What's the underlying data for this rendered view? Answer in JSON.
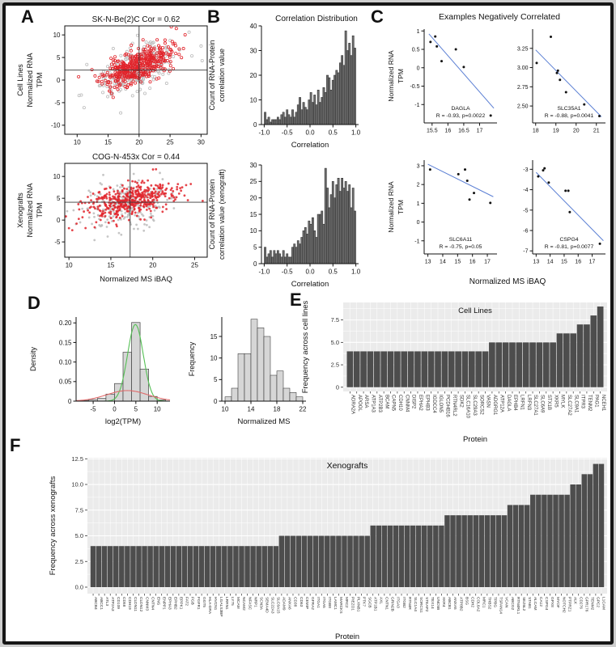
{
  "panels": {
    "a": "A",
    "b": "B",
    "c": "C",
    "d": "D",
    "e": "E",
    "f": "F"
  },
  "section_c": {
    "title": "Examples Negatively Correlated",
    "shared_xlabel": "Normalized MS iBAQ",
    "shared_ylabel_lines": [
      "Normalized RNA",
      "TPM"
    ]
  },
  "chart_data": {
    "a1": {
      "type": "scatter_gen",
      "title": "SK-N-Be(2)C Cor = 0.62",
      "ylabel_lines": [
        "Cell Lines",
        "Normalized RNA",
        "TPM"
      ],
      "xlabel": "",
      "xlim": [
        8,
        31
      ],
      "ylim": [
        -12,
        12
      ],
      "xticks": [
        "10",
        "15",
        "20",
        "25",
        "30"
      ],
      "xtick_vals": [
        10,
        15,
        20,
        25,
        30
      ],
      "yticks": [
        "10",
        "5",
        "0",
        "-5",
        "-10"
      ],
      "ytick_vals": [
        10,
        5,
        0,
        -5,
        -10
      ],
      "crosshair": {
        "x": 20,
        "y": 2.2
      },
      "filled": false,
      "red": {
        "n": 430,
        "mx": 19.6,
        "sx": 2.7,
        "my": 3.0,
        "sy": 2.2,
        "r": 0.62,
        "seed": 11
      },
      "gray": {
        "n": 260,
        "mx": 19.2,
        "sx": 3.1,
        "my": 2.2,
        "sy": 2.9,
        "r": 0.5,
        "seed": 77
      },
      "colors": {
        "red": "#e2242b",
        "gray": "#bcbcbc"
      }
    },
    "a2": {
      "type": "scatter_gen",
      "title": "COG-N-453x Cor = 0.44",
      "ylabel_lines": [
        "Xenografts",
        "Normalized RNA",
        "TPM"
      ],
      "xlabel": "Normalized MS iBAQ",
      "xlim": [
        9.5,
        26.5
      ],
      "ylim": [
        -8.5,
        13
      ],
      "xticks": [
        "10",
        "15",
        "20",
        "25"
      ],
      "xtick_vals": [
        10,
        15,
        20,
        25
      ],
      "yticks": [
        "10",
        "5",
        "0",
        "-5"
      ],
      "ytick_vals": [
        10,
        5,
        0,
        -5
      ],
      "crosshair": {
        "x": 17.3,
        "y": 4.1
      },
      "filled": true,
      "red": {
        "n": 430,
        "mx": 17.1,
        "sx": 2.6,
        "my": 4.3,
        "sy": 2.1,
        "r": 0.44,
        "seed": 23
      },
      "gray": {
        "n": 250,
        "mx": 16.8,
        "sx": 2.9,
        "my": 3.4,
        "sy": 2.8,
        "r": 0.3,
        "seed": 91
      },
      "colors": {
        "red": "#e2242b",
        "gray": "#bcbcbc"
      }
    },
    "b1": {
      "type": "hist",
      "title": "Correlation Distribution",
      "ylabel_lines": [
        "Count of RNA-Protein",
        "correlation value"
      ],
      "xlabel": "Correlation",
      "xlim": [
        -1.06,
        1.06
      ],
      "ylim": [
        0,
        40
      ],
      "xticks": [
        "-1.0",
        "-0.5",
        "0.0",
        "0.5",
        "1.0"
      ],
      "xtick_vals": [
        -1.0,
        -0.5,
        0.0,
        0.5,
        1.0
      ],
      "yticks": [
        "0",
        "10",
        "20",
        "30",
        "40"
      ],
      "ytick_vals": [
        0,
        10,
        20,
        30,
        40
      ],
      "bin_start": -1,
      "bin_width": 0.04,
      "fill": "#6e6e6e",
      "values": [
        5,
        2,
        3,
        1,
        2,
        2,
        2,
        3,
        2,
        4,
        5,
        3,
        6,
        4,
        3,
        6,
        3,
        5,
        8,
        11,
        6,
        9,
        7,
        6,
        10,
        13,
        9,
        12,
        8,
        14,
        9,
        11,
        15,
        13,
        20,
        19,
        14,
        18,
        20,
        22,
        21,
        25,
        28,
        24,
        38,
        30,
        33,
        28,
        36,
        31
      ]
    },
    "b2": {
      "type": "hist",
      "title": "",
      "ylabel_lines": [
        "Count of RNA-Protein",
        "correlation value (xenograft)"
      ],
      "xlabel": "Correlation",
      "xlim": [
        -1.06,
        1.06
      ],
      "ylim": [
        0,
        30
      ],
      "xticks": [
        "-1.0",
        "-0.5",
        "0.0",
        "0.5",
        "1.0"
      ],
      "xtick_vals": [
        -1.0,
        -0.5,
        0.0,
        0.5,
        1.0
      ],
      "yticks": [
        "0",
        "5",
        "10",
        "15",
        "20",
        "25",
        "30"
      ],
      "ytick_vals": [
        0,
        5,
        10,
        15,
        20,
        25,
        30
      ],
      "bin_start": -1,
      "bin_width": 0.04,
      "fill": "#6e6e6e",
      "values": [
        5,
        2,
        3,
        4,
        2,
        4,
        3,
        4,
        3,
        2,
        4,
        2,
        3,
        2,
        2,
        5,
        6,
        5,
        7,
        6,
        8,
        10,
        11,
        9,
        13,
        12,
        14,
        10,
        8,
        15,
        15,
        16,
        12,
        29,
        23,
        17,
        21,
        25,
        20,
        24,
        26,
        22,
        26,
        23,
        25,
        22,
        24,
        17,
        23,
        16
      ]
    },
    "c1": {
      "type": "scatter_line",
      "gene": "DAGLA",
      "stats": "R = -0.93, p=0.0022",
      "ylabel_lines": [
        "Normalized RNA",
        "TPM"
      ],
      "xlim": [
        15.25,
        17.55
      ],
      "ylim": [
        -1.5,
        1.05
      ],
      "xticks": [
        "15.5",
        "16",
        "16.5",
        "17"
      ],
      "xtick_vals": [
        15.5,
        16,
        16.5,
        17
      ],
      "yticks": [
        "1",
        "0.5",
        "0",
        "-0.5",
        "-1"
      ],
      "ytick_vals": [
        1,
        0.5,
        0,
        -0.5,
        -1
      ],
      "points": [
        [
          15.45,
          0.7
        ],
        [
          15.6,
          0.85
        ],
        [
          15.65,
          0.58
        ],
        [
          15.8,
          0.18
        ],
        [
          16.25,
          0.5
        ],
        [
          16.5,
          0.02
        ],
        [
          17.35,
          -1.3
        ]
      ],
      "line": [
        [
          15.4,
          0.92
        ],
        [
          17.45,
          -1.1
        ]
      ],
      "line_color": "#5b7fd4"
    },
    "c2": {
      "type": "scatter_line",
      "gene": "SLC35A1",
      "stats": "R = -0.88, p=0.0041",
      "ylabel_lines": [],
      "xlim": [
        17.85,
        21.45
      ],
      "ylim": [
        2.28,
        3.5
      ],
      "xticks": [
        "18",
        "19",
        "20",
        "21"
      ],
      "xtick_vals": [
        18,
        19,
        20,
        21
      ],
      "yticks": [
        "3.25",
        "3.00",
        "2.75",
        "2.50"
      ],
      "ytick_vals": [
        3.25,
        3.0,
        2.75,
        2.5
      ],
      "points": [
        [
          18.05,
          3.06
        ],
        [
          18.75,
          3.4
        ],
        [
          19.05,
          2.93
        ],
        [
          19.1,
          2.96
        ],
        [
          19.2,
          2.84
        ],
        [
          19.5,
          2.68
        ],
        [
          20.4,
          2.52
        ],
        [
          21.15,
          2.37
        ]
      ],
      "line": [
        [
          18.0,
          3.23
        ],
        [
          21.25,
          2.36
        ]
      ],
      "line_color": "#5b7fd4"
    },
    "c3": {
      "type": "scatter_line",
      "gene": "SLC6A11",
      "stats": "R = -0.75, p=0.05",
      "ylabel_lines": [
        "Normalized RNA",
        "TPM"
      ],
      "xlim": [
        12.75,
        17.65
      ],
      "ylim": [
        -1.7,
        3.3
      ],
      "xticks": [
        "13",
        "14",
        "15",
        "16",
        "17"
      ],
      "xtick_vals": [
        13,
        14,
        15,
        16,
        17
      ],
      "yticks": [
        "3",
        "2",
        "1",
        "0",
        "-1"
      ],
      "ytick_vals": [
        3,
        2,
        1,
        0,
        -1
      ],
      "points": [
        [
          13.15,
          2.8
        ],
        [
          15.05,
          2.55
        ],
        [
          15.5,
          2.8
        ],
        [
          15.65,
          2.2
        ],
        [
          15.8,
          1.2
        ],
        [
          16.1,
          1.55
        ],
        [
          17.2,
          1.02
        ]
      ],
      "line": [
        [
          13.0,
          3.08
        ],
        [
          17.4,
          1.35
        ]
      ],
      "line_color": "#5b7fd4"
    },
    "c4": {
      "type": "scatter_line",
      "gene": "CSPG4",
      "stats": "R = -0.81, p=0.0077",
      "ylabel_lines": [],
      "xlim": [
        12.75,
        17.95
      ],
      "ylim": [
        -7.15,
        -2.55
      ],
      "xticks": [
        "13",
        "14",
        "15",
        "16",
        "17"
      ],
      "xtick_vals": [
        13,
        14,
        15,
        16,
        17
      ],
      "yticks": [
        "-3",
        "-4",
        "-5",
        "-6",
        "-7"
      ],
      "ytick_vals": [
        -3,
        -4,
        -5,
        -6,
        -7
      ],
      "points": [
        [
          13.15,
          -3.35
        ],
        [
          13.5,
          -3.05
        ],
        [
          13.6,
          -2.95
        ],
        [
          13.9,
          -3.65
        ],
        [
          15.1,
          -4.05
        ],
        [
          15.3,
          -4.05
        ],
        [
          15.4,
          -5.1
        ],
        [
          17.55,
          -6.65
        ]
      ],
      "line": [
        [
          13.0,
          -3.15
        ],
        [
          17.8,
          -6.5
        ]
      ],
      "line_color": "#5b7fd4"
    },
    "d1": {
      "type": "density",
      "ylabel": "Density",
      "xlabel": "log2(TPM)",
      "xlim": [
        -9,
        13
      ],
      "ylim": [
        0,
        0.215
      ],
      "xticks": [
        "-5",
        "0",
        "5",
        "10"
      ],
      "xtick_vals": [
        -5,
        0,
        5,
        10
      ],
      "yticks": [
        "0",
        "0.05",
        "0.10",
        "0.15",
        "0.20"
      ],
      "ytick_vals": [
        0,
        0.05,
        0.1,
        0.15,
        0.2
      ],
      "bin_start": -8,
      "bin_width": 2,
      "fill": "#d6d6d6",
      "values": [
        0.002,
        0.004,
        0.007,
        0.018,
        0.045,
        0.125,
        0.201,
        0.082,
        0.012,
        0.003
      ],
      "curves": [
        {
          "name": "narrow-green-curve",
          "color": "#54c054",
          "mu": 4.9,
          "sigma": 1.85,
          "amp": 0.196
        },
        {
          "name": "broad-red-curve",
          "color": "#e06a6a",
          "mu": 3.0,
          "sigma": 4.8,
          "amp": 0.027
        }
      ]
    },
    "d2": {
      "type": "hist",
      "title": "",
      "ylabel_lines": [
        "Frequency"
      ],
      "xlabel": "Normalized MS",
      "xlim": [
        9.5,
        22.5
      ],
      "ylim": [
        0,
        19.5
      ],
      "xticks": [
        "10",
        "14",
        "18",
        "22"
      ],
      "xtick_vals": [
        10,
        14,
        18,
        22
      ],
      "yticks": [
        "0",
        "5",
        "10",
        "15"
      ],
      "ytick_vals": [
        0,
        5,
        10,
        15
      ],
      "bin_start": 10,
      "bin_width": 1,
      "fill": "#d6d6d6",
      "values": [
        1,
        3,
        11,
        11,
        19,
        17,
        15,
        6,
        7,
        3,
        2,
        1
      ]
    },
    "e": {
      "type": "ggbar",
      "title": "Cell Lines",
      "ylabel": "Frequency across cell lines",
      "xlabel": "Protein",
      "ylim": [
        -0.47,
        9.45
      ],
      "yticks": [
        "0",
        "2.5",
        "5.0",
        "7.5"
      ],
      "ytick_vals": [
        0,
        2.5,
        5.0,
        7.5
      ],
      "bar_color": "#4d4d4d",
      "bg": "#ebebeb",
      "categories": [
        "ADRA2A",
        "APOOL",
        "ARSA",
        "ATP1A3",
        "ATP2B3",
        "BCAM",
        "CAPN5",
        "CDH10",
        "CNNM4",
        "DISP2",
        "EPHA2",
        "EPHB3",
        "IGDCC4",
        "IGLON5",
        "PCDHB16",
        "RTN4RL2",
        "SDK2",
        "SLC16A10",
        "SLC29A3",
        "SORCS2",
        "VASN",
        "ADGRG1",
        "ATP12A",
        "DAGLA",
        "EPHB4",
        "LRFN1",
        "LRFN3",
        "SLC27A1",
        "SLC6A9",
        "STX1B",
        "XKR5",
        "MYLK",
        "SLC27A2",
        "SLC9A1",
        "ITPR3",
        "TENM2",
        "PAG1",
        "NCEH1"
      ],
      "values": [
        4,
        4,
        4,
        4,
        4,
        4,
        4,
        4,
        4,
        4,
        4,
        4,
        4,
        4,
        4,
        4,
        4,
        4,
        4,
        4,
        4,
        5,
        5,
        5,
        5,
        5,
        5,
        5,
        5,
        5,
        5,
        6,
        6,
        6,
        7,
        7,
        8,
        9
      ]
    },
    "f": {
      "type": "ggbar",
      "title": "Xenografts",
      "ylabel": "Frequency across xenografts",
      "xlabel": "Protein",
      "ylim": [
        -0.63,
        12.6
      ],
      "yticks": [
        "0.0",
        "2.5",
        "5.0",
        "7.5",
        "10.0",
        "12.5"
      ],
      "ytick_vals": [
        0,
        2.5,
        5.0,
        7.5,
        10.0,
        12.5
      ],
      "bar_color": "#4d4d4d",
      "bg": "#ebebeb",
      "categories": [
        "ABCB4",
        "ABCC1",
        "ATL3",
        "ATP2A3",
        "CD109",
        "CD58",
        "CDH19",
        "CLDN11",
        "CLDN12",
        "CNNM3",
        "CNTN4",
        "ENG",
        "ENPP1",
        "EPHA3",
        "EPHB2",
        "EPPK1",
        "FAT2",
        "FGB",
        "FGFR1",
        "GGT5",
        "HLA-DRA",
        "HVCN1",
        "LGALS3BP",
        "LRRN1",
        "LY75",
        "MCAM",
        "NCAM2",
        "NFASC",
        "NRP1",
        "SCN3A",
        "SEMA4D",
        "SLC22A3",
        "SLC6A15",
        "ADAM9",
        "ANXA6",
        "CD38",
        "CD63",
        "CEMIP",
        "GFRA2",
        "ITGA1",
        "ITGA5",
        "ITGB8",
        "LAMC1",
        "MARCKS",
        "MRC2",
        "PIEZO1",
        "PLXNB1",
        "PTK7",
        "SGCB",
        "ATP1B1",
        "AXL",
        "CNTN1",
        "GRIN2B",
        "ITGA3",
        "ITGB2",
        "RTN4R",
        "SLC1A4",
        "SORCS1",
        "STEAP2",
        "TEX14",
        "UNC5B",
        "XKR4",
        "ABCB1",
        "ANXA5",
        "ATP8B2",
        "BSG",
        "CDH2",
        "COL6A2",
        "MRC1",
        "THBS2",
        "TPBG",
        "TSPAN14",
        "VCAN",
        "ABCG2",
        "RTN4RL1",
        "SEZ6L2",
        "STAB1",
        "ALCAM",
        "CA12",
        "CSPG4",
        "GPX8",
        "MYOF",
        "NOTCH2",
        "PTPRZ1",
        "ALK",
        "CD276",
        "GPR176",
        "TENM2",
        "GPC2",
        "L1CAM"
      ],
      "values": [
        4,
        4,
        4,
        4,
        4,
        4,
        4,
        4,
        4,
        4,
        4,
        4,
        4,
        4,
        4,
        4,
        4,
        4,
        4,
        4,
        4,
        4,
        4,
        4,
        4,
        4,
        4,
        4,
        4,
        4,
        4,
        4,
        4,
        5,
        5,
        5,
        5,
        5,
        5,
        5,
        5,
        5,
        5,
        5,
        5,
        5,
        5,
        5,
        5,
        6,
        6,
        6,
        6,
        6,
        6,
        6,
        6,
        6,
        6,
        6,
        6,
        6,
        7,
        7,
        7,
        7,
        7,
        7,
        7,
        7,
        7,
        7,
        7,
        8,
        8,
        8,
        8,
        9,
        9,
        9,
        9,
        9,
        9,
        9,
        10,
        10,
        11,
        11,
        12,
        12
      ]
    }
  }
}
